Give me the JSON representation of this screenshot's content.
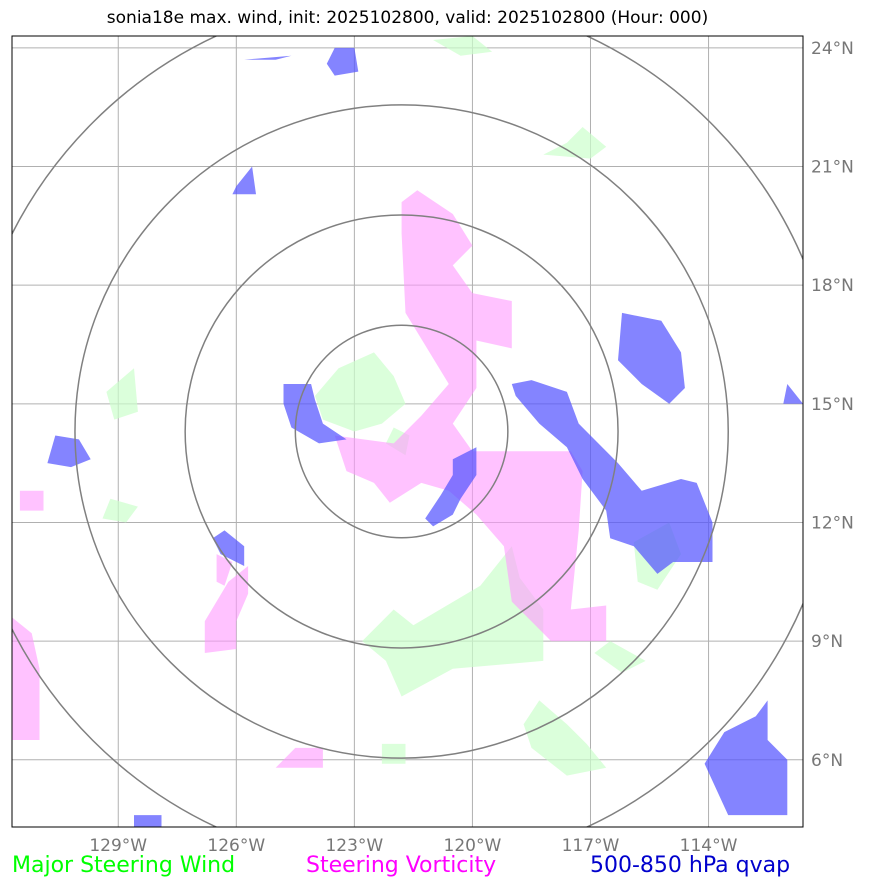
{
  "title": "sonia18e max. wind, init: 2025102800, valid: 2025102800 (Hour: 000)",
  "map": {
    "extent": {
      "lon": [
        -131.7,
        -111.6
      ],
      "lat": [
        4.3,
        24.3
      ]
    },
    "lon_ticks": [
      -129,
      -126,
      -123,
      -120,
      -117,
      -114
    ],
    "lon_labels": [
      "129°W",
      "126°W",
      "123°W",
      "120°W",
      "117°W",
      "114°W"
    ],
    "lat_ticks": [
      6,
      9,
      12,
      15,
      18,
      21,
      24
    ],
    "lat_labels": [
      "6°N",
      "9°N",
      "12°N",
      "15°N",
      "18°N",
      "21°N",
      "24°N"
    ],
    "range_rings": {
      "center": {
        "lon": -121.8,
        "lat": 14.3
      },
      "radii_deg": [
        2.7,
        5.5,
        8.3,
        11.1
      ]
    },
    "colors": {
      "steering_wind": "#ccffcc",
      "steering_vorticity": "#ff99ff",
      "qvap": "#5555ff",
      "rings": "#808080",
      "grid": "#b0b0b0"
    },
    "fields": {
      "steering_wind": [
        [
          [
            -122.5,
            16.3
          ],
          [
            -122.0,
            15.7
          ],
          [
            -121.7,
            15.0
          ],
          [
            -122.3,
            14.5
          ],
          [
            -123.0,
            14.3
          ],
          [
            -123.8,
            14.6
          ],
          [
            -124.0,
            15.2
          ],
          [
            -123.4,
            15.9
          ]
        ],
        [
          [
            -122.2,
            14.0
          ],
          [
            -121.7,
            13.7
          ],
          [
            -121.6,
            14.2
          ],
          [
            -122.0,
            14.4
          ]
        ],
        [
          [
            -129.3,
            15.3
          ],
          [
            -128.6,
            15.9
          ],
          [
            -128.5,
            14.8
          ],
          [
            -129.1,
            14.6
          ]
        ],
        [
          [
            -121.5,
            9.4
          ],
          [
            -119.8,
            10.4
          ],
          [
            -119.0,
            11.4
          ],
          [
            -118.8,
            10.6
          ],
          [
            -118.2,
            9.8
          ],
          [
            -118.2,
            8.5
          ],
          [
            -120.5,
            8.3
          ],
          [
            -121.8,
            7.6
          ],
          [
            -122.2,
            8.5
          ],
          [
            -122.8,
            9.0
          ],
          [
            -122.0,
            9.8
          ]
        ],
        [
          [
            -118.3,
            7.5
          ],
          [
            -117.6,
            6.9
          ],
          [
            -117.1,
            6.4
          ],
          [
            -116.6,
            5.8
          ],
          [
            -117.6,
            5.6
          ],
          [
            -118.5,
            6.3
          ],
          [
            -118.7,
            6.9
          ]
        ],
        [
          [
            -122.3,
            6.4
          ],
          [
            -121.7,
            6.4
          ],
          [
            -121.7,
            5.9
          ],
          [
            -122.3,
            5.9
          ]
        ],
        [
          [
            -117.6,
            21.6
          ],
          [
            -117.2,
            22.0
          ],
          [
            -116.6,
            21.5
          ],
          [
            -117.0,
            21.2
          ],
          [
            -118.2,
            21.3
          ]
        ],
        [
          [
            -120.0,
            24.3
          ],
          [
            -119.5,
            23.9
          ],
          [
            -120.3,
            23.8
          ],
          [
            -121.0,
            24.2
          ]
        ],
        [
          [
            -115.9,
            11.5
          ],
          [
            -115.0,
            12.0
          ],
          [
            -114.7,
            11.2
          ],
          [
            -115.3,
            10.3
          ],
          [
            -115.8,
            10.5
          ]
        ],
        [
          [
            -116.5,
            9.0
          ],
          [
            -115.6,
            8.5
          ],
          [
            -116.2,
            8.2
          ],
          [
            -116.9,
            8.7
          ]
        ],
        [
          [
            -129.2,
            12.6
          ],
          [
            -128.5,
            12.4
          ],
          [
            -128.8,
            12.0
          ],
          [
            -129.4,
            12.1
          ]
        ]
      ],
      "steering_vorticity": [
        [
          [
            -121.4,
            20.4
          ],
          [
            -120.5,
            19.8
          ],
          [
            -120.0,
            19.0
          ],
          [
            -120.5,
            18.5
          ],
          [
            -120.0,
            17.8
          ],
          [
            -119.0,
            17.6
          ],
          [
            -119.0,
            16.4
          ],
          [
            -119.9,
            16.6
          ],
          [
            -119.9,
            15.4
          ],
          [
            -120.5,
            14.5
          ],
          [
            -120.0,
            13.8
          ],
          [
            -117.5,
            13.8
          ],
          [
            -117.2,
            13.3
          ],
          [
            -117.3,
            11.8
          ],
          [
            -117.5,
            9.8
          ],
          [
            -116.6,
            9.9
          ],
          [
            -116.6,
            9.0
          ],
          [
            -118.0,
            9.0
          ],
          [
            -119.0,
            10.0
          ],
          [
            -119.2,
            11.4
          ],
          [
            -119.9,
            12.2
          ],
          [
            -120.6,
            12.8
          ],
          [
            -121.3,
            13.0
          ],
          [
            -122.1,
            12.5
          ],
          [
            -122.5,
            13.0
          ],
          [
            -123.2,
            13.3
          ],
          [
            -123.5,
            14.2
          ],
          [
            -122.0,
            14.0
          ],
          [
            -121.3,
            14.7
          ],
          [
            -120.6,
            15.5
          ],
          [
            -121.7,
            17.3
          ],
          [
            -121.8,
            19.3
          ],
          [
            -121.8,
            20.1
          ]
        ],
        [
          [
            -131.5,
            12.8
          ],
          [
            -130.9,
            12.8
          ],
          [
            -130.9,
            12.3
          ],
          [
            -131.5,
            12.3
          ]
        ],
        [
          [
            -131.7,
            9.6
          ],
          [
            -131.2,
            9.2
          ],
          [
            -131.0,
            8.3
          ],
          [
            -131.0,
            6.5
          ],
          [
            -131.7,
            6.5
          ]
        ],
        [
          [
            -126.2,
            10.5
          ],
          [
            -125.7,
            10.9
          ],
          [
            -125.7,
            10.2
          ],
          [
            -126.0,
            9.5
          ],
          [
            -126.0,
            8.8
          ],
          [
            -126.8,
            8.7
          ],
          [
            -126.8,
            9.5
          ]
        ],
        [
          [
            -124.5,
            6.3
          ],
          [
            -123.8,
            6.3
          ],
          [
            -123.8,
            5.8
          ],
          [
            -125.0,
            5.8
          ]
        ],
        [
          [
            -126.5,
            11.2
          ],
          [
            -126.1,
            11.0
          ],
          [
            -126.3,
            10.4
          ],
          [
            -126.5,
            10.5
          ]
        ]
      ],
      "qvap": [
        [
          [
            -123.5,
            24.0
          ],
          [
            -123.0,
            24.0
          ],
          [
            -122.9,
            23.4
          ],
          [
            -123.5,
            23.3
          ],
          [
            -123.7,
            23.6
          ]
        ],
        [
          [
            -126.0,
            20.5
          ],
          [
            -125.6,
            21.0
          ],
          [
            -125.5,
            20.3
          ],
          [
            -126.1,
            20.3
          ]
        ],
        [
          [
            -124.8,
            15.5
          ],
          [
            -124.1,
            15.5
          ],
          [
            -124.0,
            15.1
          ],
          [
            -123.8,
            14.5
          ],
          [
            -123.2,
            14.1
          ],
          [
            -123.9,
            14.0
          ],
          [
            -124.6,
            14.4
          ],
          [
            -124.8,
            15.0
          ]
        ],
        [
          [
            -130.6,
            14.2
          ],
          [
            -130.0,
            14.1
          ],
          [
            -129.7,
            13.6
          ],
          [
            -130.2,
            13.4
          ],
          [
            -130.8,
            13.5
          ]
        ],
        [
          [
            -126.3,
            11.8
          ],
          [
            -125.8,
            11.4
          ],
          [
            -125.8,
            10.9
          ],
          [
            -126.4,
            11.2
          ],
          [
            -126.6,
            11.6
          ]
        ],
        [
          [
            -120.5,
            13.6
          ],
          [
            -119.9,
            13.9
          ],
          [
            -119.9,
            13.2
          ],
          [
            -120.3,
            12.6
          ],
          [
            -120.5,
            12.2
          ],
          [
            -121.0,
            11.9
          ],
          [
            -121.2,
            12.1
          ],
          [
            -120.8,
            12.7
          ],
          [
            -120.5,
            13.2
          ]
        ],
        [
          [
            -118.5,
            15.6
          ],
          [
            -117.6,
            15.3
          ],
          [
            -117.3,
            14.5
          ],
          [
            -116.3,
            13.5
          ],
          [
            -115.7,
            12.8
          ],
          [
            -114.7,
            13.1
          ],
          [
            -114.3,
            13.0
          ],
          [
            -113.9,
            12.0
          ],
          [
            -113.9,
            11.0
          ],
          [
            -114.9,
            11.0
          ],
          [
            -115.3,
            10.7
          ],
          [
            -115.9,
            11.4
          ],
          [
            -116.5,
            11.6
          ],
          [
            -116.6,
            12.3
          ],
          [
            -117.2,
            13.1
          ],
          [
            -117.6,
            13.9
          ],
          [
            -118.3,
            14.5
          ],
          [
            -118.9,
            15.2
          ],
          [
            -119.0,
            15.5
          ]
        ],
        [
          [
            -116.2,
            17.3
          ],
          [
            -115.2,
            17.1
          ],
          [
            -114.7,
            16.3
          ],
          [
            -114.6,
            15.4
          ],
          [
            -115.0,
            15.0
          ],
          [
            -115.7,
            15.5
          ],
          [
            -116.3,
            16.1
          ]
        ],
        [
          [
            -112.0,
            15.5
          ],
          [
            -111.6,
            15.0
          ],
          [
            -112.1,
            15.0
          ]
        ],
        [
          [
            -112.5,
            7.5
          ],
          [
            -112.5,
            6.5
          ],
          [
            -112.0,
            6.0
          ],
          [
            -112.0,
            4.6
          ],
          [
            -113.5,
            4.6
          ],
          [
            -114.1,
            5.9
          ],
          [
            -113.6,
            6.7
          ],
          [
            -112.8,
            7.1
          ]
        ],
        [
          [
            -125.8,
            23.7
          ],
          [
            -124.6,
            23.8
          ],
          [
            -125.0,
            23.7
          ]
        ],
        [
          [
            -128.6,
            4.6
          ],
          [
            -127.9,
            4.6
          ],
          [
            -127.9,
            4.3
          ],
          [
            -128.6,
            4.3
          ]
        ]
      ]
    }
  },
  "legend": {
    "wind": "Major Steering Wind",
    "vorticity": "Steering Vorticity",
    "qvap": "500-850 hPa qvap",
    "wind_color": "#00ff00",
    "vorticity_color": "#ff00ff",
    "qvap_color": "#0000cc"
  }
}
